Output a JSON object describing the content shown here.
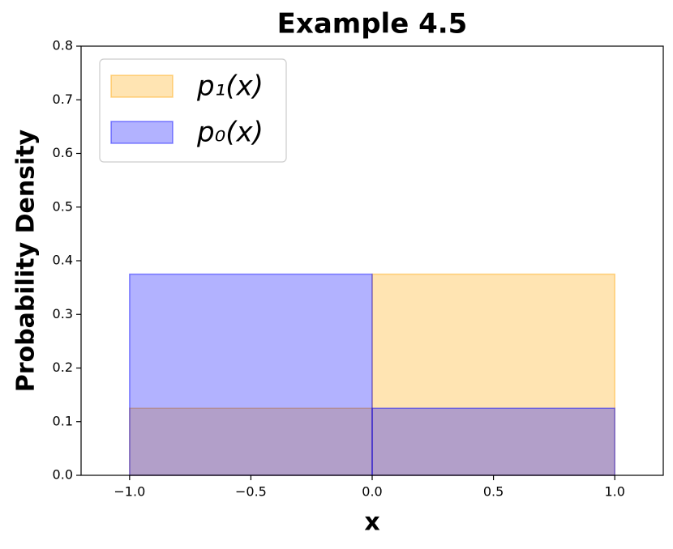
{
  "chart_data": {
    "type": "histogram",
    "title": "Example 4.5",
    "x_label": "x",
    "y_label": "Probability Density",
    "series": [
      {
        "name": "p₁(x)",
        "color": "#ffa500",
        "bins": [
          -1,
          0,
          1
        ],
        "values": [
          0.125,
          0.375
        ]
      },
      {
        "name": "p₀(x)",
        "color": "#0000ff",
        "bins": [
          -1,
          0,
          1
        ],
        "values": [
          0.375,
          0.125
        ]
      }
    ],
    "xlim": [
      -1.2,
      1.2
    ],
    "xticks": [
      {
        "value": -1,
        "label": "−1.0"
      },
      {
        "value": -0.5,
        "label": "−0.5"
      },
      {
        "value": 0,
        "label": "0.0"
      },
      0.5,
      {
        "value": 1,
        "label": "1.0"
      }
    ],
    "ylim": [
      0,
      0.8
    ],
    "yticks": [
      {
        "value": 0,
        "label": "0.0"
      },
      0.1,
      0.2,
      0.3,
      0.4,
      0.5,
      0.6,
      0.7,
      0.8
    ],
    "legend": "upper left",
    "fill_alpha": 0.3
  }
}
